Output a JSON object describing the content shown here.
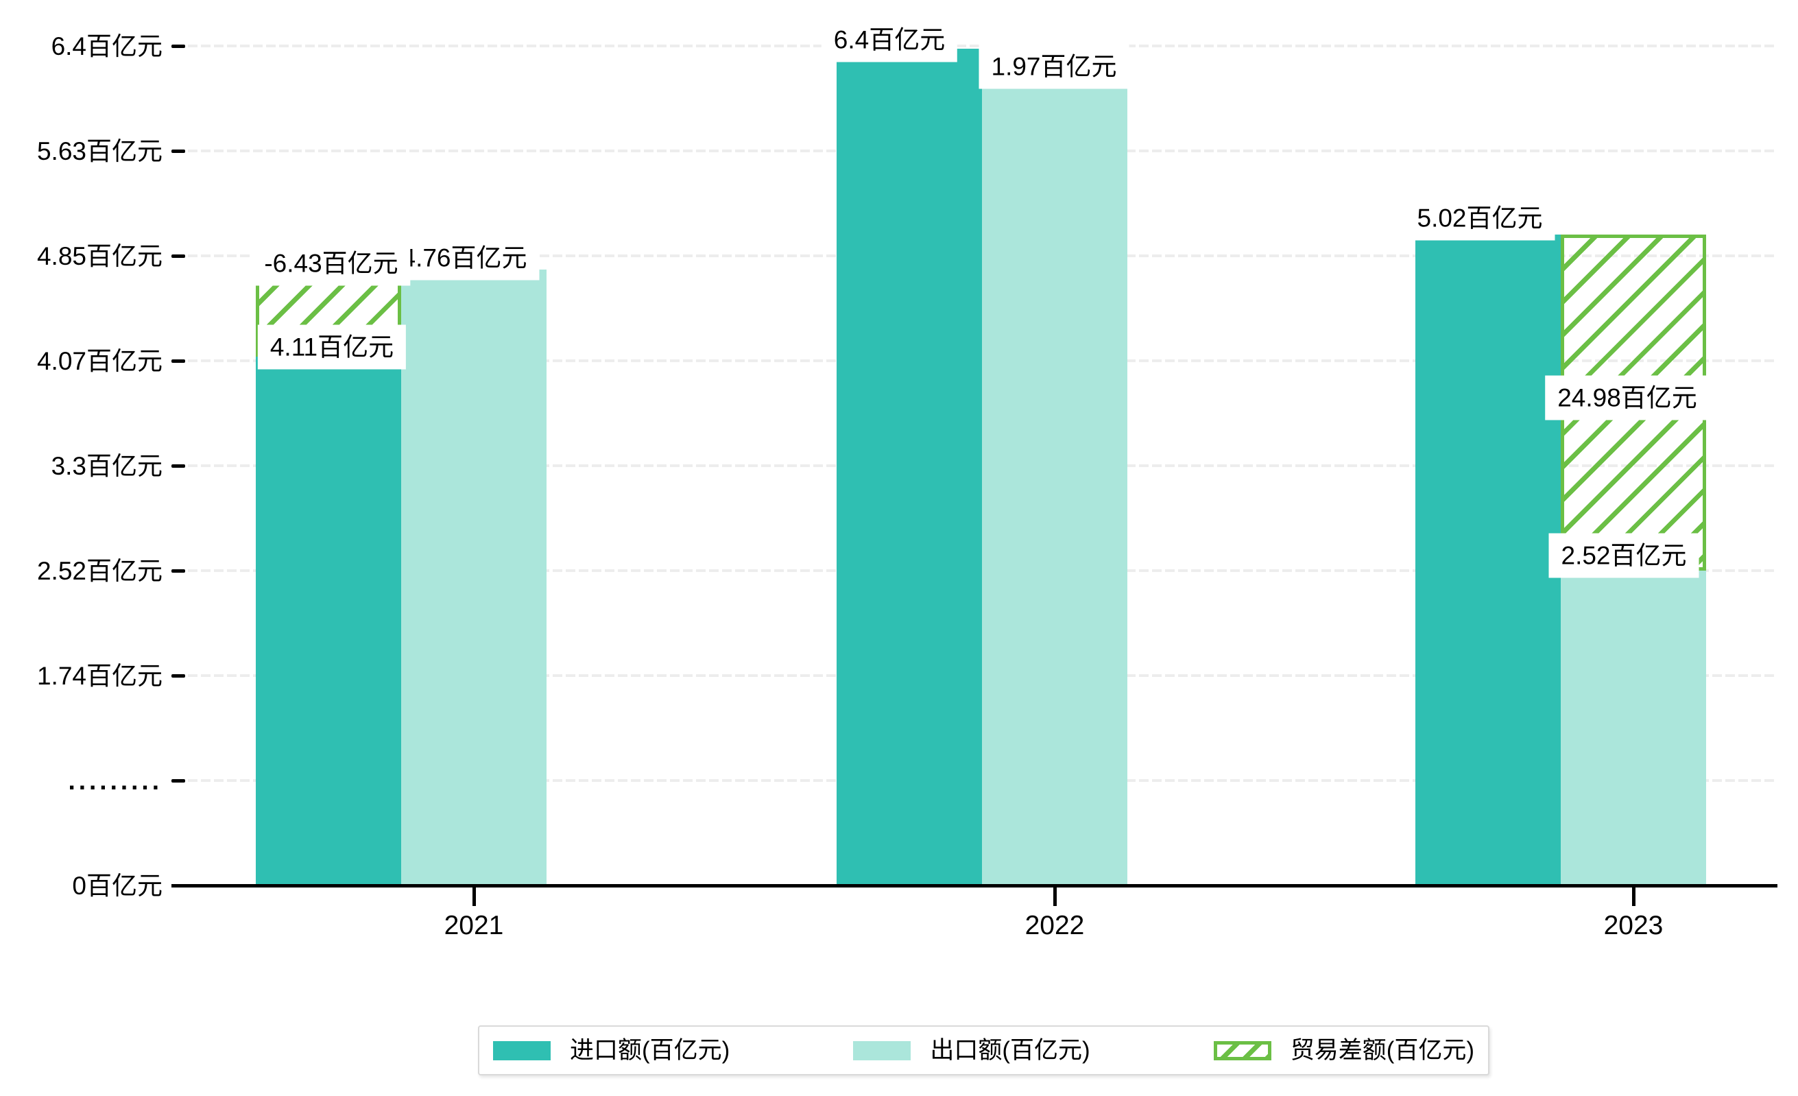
{
  "chart_data": {
    "type": "bar",
    "title": "",
    "categories": [
      "2021",
      "2022",
      "2023"
    ],
    "series": [
      {
        "key": "import",
        "name": "进口额(百亿元)",
        "values": [
          4.11,
          6.4,
          5.02
        ],
        "color": "#2fbfb2",
        "style": "solid"
      },
      {
        "key": "export",
        "name": "出口额(百亿元)",
        "values": [
          4.76,
          6.2,
          2.52
        ],
        "color": "#abe6db",
        "style": "solid"
      },
      {
        "key": "balance",
        "name": "贸易差额(百亿元)",
        "values": [
          -6.43,
          1.97,
          24.98
        ],
        "color": "#6bbf45",
        "style": "hatched"
      }
    ],
    "unit": "百亿元",
    "y_ticks_bottom_to_top": [
      "0百亿元",
      ".........",
      "1.74百亿元",
      "2.52百亿元",
      "3.3百亿元",
      "4.07百亿元",
      "4.85百亿元",
      "5.63百亿元",
      "6.4百亿元"
    ],
    "y_axis": {
      "has_break_above_zero": true,
      "units_per_tick": 0.78,
      "grid": "dashed-light-gray"
    },
    "legend_position": "bottom-center"
  },
  "bar_labels": [
    {
      "id": "2021-export",
      "text": "4.76百亿元"
    },
    {
      "id": "2021-balance",
      "text": "-6.43百亿元"
    },
    {
      "id": "2021-import",
      "text": "4.11百亿元"
    },
    {
      "id": "2022-import",
      "text": "6.4百亿元"
    },
    {
      "id": "2022-balance",
      "text": "1.97百亿元"
    },
    {
      "id": "2023-import",
      "text": "5.02百亿元"
    },
    {
      "id": "2023-balance",
      "text": "24.98百亿元"
    },
    {
      "id": "2023-export",
      "text": "2.52百亿元"
    }
  ],
  "legend": {
    "items": [
      {
        "label": "进口额(百亿元)",
        "swatch": "solid-teal"
      },
      {
        "label": "出口额(百亿元)",
        "swatch": "solid-light-teal"
      },
      {
        "label": "贸易差额(百亿元)",
        "swatch": "hatched-green"
      }
    ]
  },
  "colors": {
    "import": "#2fbfb2",
    "export": "#abe6db",
    "balance": "#6bbf45",
    "grid": "#ededed",
    "axis": "#000000",
    "legend_border": "#d9d9d9",
    "label_bg": "#ffffff"
  }
}
